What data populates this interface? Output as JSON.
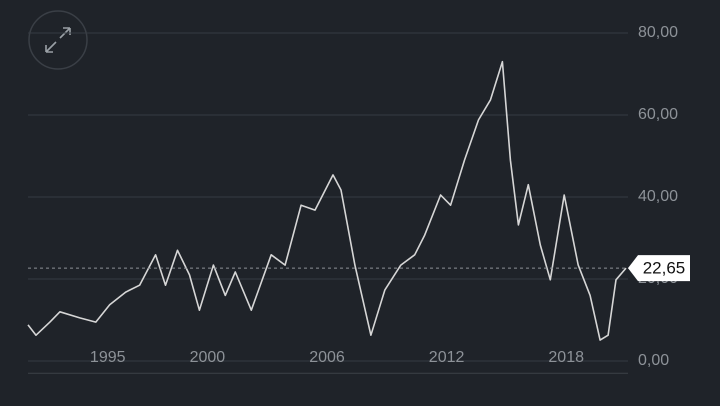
{
  "chart_data": {
    "type": "line",
    "x": [
      1991.0,
      1991.4,
      1992.1,
      1992.6,
      1993.6,
      1994.4,
      1995.1,
      1995.9,
      1996.6,
      1997.4,
      1997.9,
      1998.5,
      1999.1,
      1999.6,
      2000.3,
      2000.9,
      2001.4,
      2002.2,
      2003.2,
      2003.9,
      2004.7,
      2005.4,
      2006.3,
      2006.7,
      2007.4,
      2008.2,
      2008.9,
      2009.7,
      2010.4,
      2010.9,
      2011.7,
      2012.2,
      2012.9,
      2013.6,
      2014.2,
      2014.8,
      2015.2,
      2015.6,
      2016.1,
      2016.7,
      2017.2,
      2017.9,
      2018.6,
      2019.2,
      2019.7,
      2020.1,
      2020.5,
      2021.0
    ],
    "series": [
      {
        "color": "#d6d6d6",
        "values": [
          8.8,
          6.3,
          9.5,
          12,
          10.5,
          9.5,
          13.7,
          16.8,
          18.5,
          25.9,
          18.5,
          27,
          21,
          12.4,
          23.4,
          16,
          21.7,
          12.4,
          25.9,
          23.4,
          38,
          36.8,
          45.4,
          41.7,
          23.4,
          6.3,
          17.3,
          23.4,
          25.9,
          30.7,
          40.5,
          38,
          49,
          58.8,
          63.7,
          73,
          49,
          33.2,
          43,
          28.3,
          19.8,
          40.5,
          23.4,
          16,
          5.1,
          6.3,
          19.8,
          22.65
        ]
      }
    ],
    "xlim": [
      1991,
      2021.1
    ],
    "xticks": [
      1995,
      2000,
      2006,
      2012,
      2018
    ],
    "ylim": [
      -3,
      84
    ],
    "yticks": [
      {
        "value": 0,
        "label": "0,00"
      },
      {
        "value": 20,
        "label": "20,00"
      },
      {
        "value": 40,
        "label": "40,00"
      },
      {
        "value": 60,
        "label": "60,00"
      },
      {
        "value": 80,
        "label": "80,00"
      }
    ],
    "current": {
      "value": 22.65,
      "label": "22,65"
    },
    "grid": true
  }
}
